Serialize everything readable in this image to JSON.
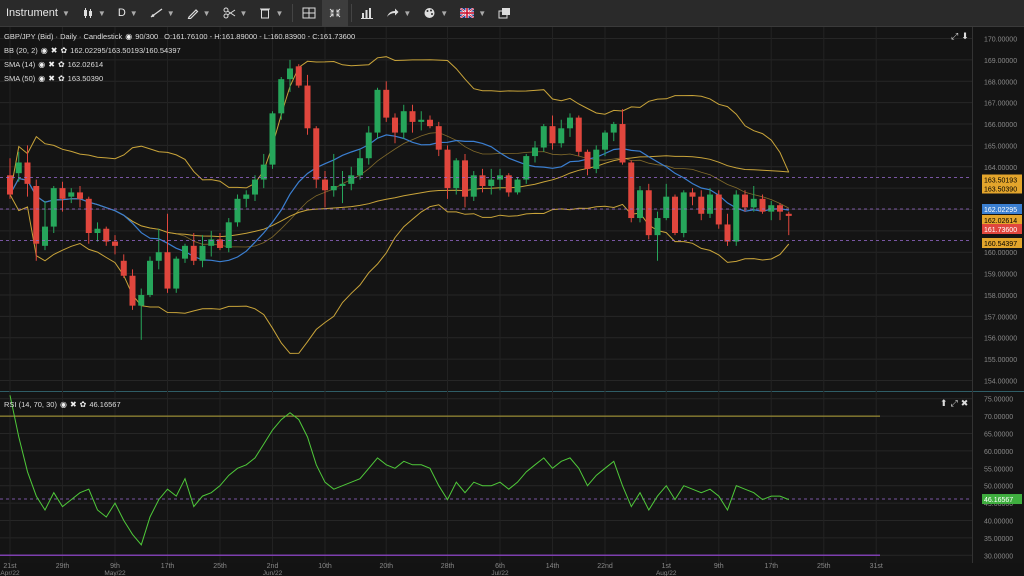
{
  "toolbar": {
    "instrument_label": "Instrument",
    "timeframe_label": "D"
  },
  "main_pane": {
    "title": "GBP/JPY (Bid) · Daily · Candlestick",
    "range": "90/300",
    "ohlc": "O:161.76100 - H:161.89000 - L:160.83900 - C:161.73600",
    "indicators": [
      {
        "name": "BB (20, 2)",
        "value": "162.02295/163.50193/160.54397"
      },
      {
        "name": "SMA (14)",
        "value": "162.02614"
      },
      {
        "name": "SMA (50)",
        "value": "163.50390"
      }
    ],
    "price_axis": [
      "170.00000",
      "169.00000",
      "168.00000",
      "167.00000",
      "166.00000",
      "165.00000",
      "164.00000",
      "163.00000",
      "162.00000",
      "161.00000",
      "160.00000",
      "159.00000",
      "158.00000",
      "157.00000",
      "156.00000",
      "155.00000",
      "154.00000"
    ],
    "price_tags": [
      {
        "label": "163.50193",
        "color": "#e3a52c",
        "text_color": "#000000"
      },
      {
        "label": "163.50390",
        "color": "#e3a52c",
        "text_color": "#000000"
      },
      {
        "label": "162.02295",
        "color": "#3b7fd1",
        "text_color": "#ffffff"
      },
      {
        "label": "162.02614",
        "color": "#e3a52c",
        "text_color": "#000000"
      },
      {
        "label": "161.73600",
        "color": "#e0463d",
        "text_color": "#ffffff"
      },
      {
        "label": "160.54397",
        "color": "#e3a52c",
        "text_color": "#000000"
      }
    ]
  },
  "rsi_pane": {
    "name": "RSI (14, 70, 30)",
    "value": "46.16567",
    "axis": [
      "75.00000",
      "70.00000",
      "65.00000",
      "60.00000",
      "55.00000",
      "50.00000",
      "45.00000",
      "40.00000",
      "35.00000",
      "30.00000"
    ],
    "tag": {
      "label": "46.16567",
      "color": "#3fae3f"
    }
  },
  "x_axis": [
    {
      "label": "21st",
      "sub": "Apr/22"
    },
    {
      "label": "29th",
      "sub": ""
    },
    {
      "label": "9th",
      "sub": "May/22"
    },
    {
      "label": "17th",
      "sub": ""
    },
    {
      "label": "25th",
      "sub": ""
    },
    {
      "label": "2nd",
      "sub": "Jun/22"
    },
    {
      "label": "10th",
      "sub": ""
    },
    {
      "label": "20th",
      "sub": ""
    },
    {
      "label": "28th",
      "sub": ""
    },
    {
      "label": "6th",
      "sub": "Jul/22"
    },
    {
      "label": "14th",
      "sub": ""
    },
    {
      "label": "22nd",
      "sub": ""
    },
    {
      "label": "1st",
      "sub": "Aug/22"
    },
    {
      "label": "9th",
      "sub": ""
    },
    {
      "label": "17th",
      "sub": ""
    },
    {
      "label": "25th",
      "sub": ""
    },
    {
      "label": "31st",
      "sub": ""
    }
  ],
  "colors": {
    "up": "#26a65b",
    "down": "#e0463d",
    "bb": "#c9a43a",
    "sma14": "#3b7fd1",
    "sma50": "#c9a43a",
    "rsi": "#4fc93a",
    "rsi_band": "#b5a43a",
    "rsi_low": "#7d3fae"
  },
  "chart_data": {
    "type": "candlestick",
    "series": [
      {
        "name": "GBP/JPY (Bid)",
        "values": [
          [
            163.6,
            164.4,
            162.5,
            162.7
          ],
          [
            163.7,
            164.7,
            163.3,
            164.2
          ],
          [
            164.2,
            165.0,
            162.6,
            163.2
          ],
          [
            163.1,
            163.4,
            159.6,
            160.4
          ],
          [
            160.3,
            162.4,
            160.1,
            161.2
          ],
          [
            161.2,
            163.1,
            160.9,
            163.0
          ],
          [
            163.0,
            163.3,
            161.9,
            162.5
          ],
          [
            162.6,
            163.0,
            162.3,
            162.8
          ],
          [
            162.8,
            163.1,
            162.1,
            162.5
          ],
          [
            162.5,
            162.6,
            160.4,
            160.9
          ],
          [
            160.9,
            161.4,
            160.5,
            161.1
          ],
          [
            161.1,
            161.2,
            160.3,
            160.5
          ],
          [
            160.5,
            160.8,
            159.9,
            160.3
          ],
          [
            159.6,
            159.9,
            158.8,
            158.9
          ],
          [
            158.9,
            159.2,
            157.3,
            157.5
          ],
          [
            157.5,
            158.3,
            155.9,
            158.0
          ],
          [
            158.0,
            159.8,
            157.9,
            159.6
          ],
          [
            159.6,
            161.1,
            159.2,
            160.0
          ],
          [
            160.0,
            161.8,
            158.1,
            158.3
          ],
          [
            158.3,
            159.8,
            158.1,
            159.7
          ],
          [
            159.7,
            160.4,
            159.5,
            160.3
          ],
          [
            160.3,
            160.9,
            159.4,
            159.6
          ],
          [
            159.6,
            160.8,
            159.3,
            160.3
          ],
          [
            160.3,
            161.0,
            159.8,
            160.6
          ],
          [
            160.6,
            160.9,
            160.1,
            160.2
          ],
          [
            160.2,
            161.6,
            160.0,
            161.4
          ],
          [
            161.4,
            162.7,
            161.2,
            162.5
          ],
          [
            162.5,
            162.9,
            162.1,
            162.7
          ],
          [
            162.7,
            163.6,
            162.4,
            163.4
          ],
          [
            163.4,
            164.6,
            163.0,
            164.1
          ],
          [
            164.1,
            166.6,
            163.9,
            166.5
          ],
          [
            166.5,
            168.2,
            166.2,
            168.1
          ],
          [
            168.1,
            169.0,
            167.5,
            168.6
          ],
          [
            168.7,
            168.8,
            167.7,
            167.8
          ],
          [
            167.8,
            168.3,
            165.5,
            165.8
          ],
          [
            165.8,
            165.9,
            163.0,
            163.4
          ],
          [
            163.4,
            163.8,
            162.1,
            162.9
          ],
          [
            162.9,
            164.6,
            162.6,
            163.1
          ],
          [
            163.1,
            163.8,
            162.3,
            163.2
          ],
          [
            163.2,
            164.0,
            162.9,
            163.6
          ],
          [
            163.6,
            164.8,
            163.4,
            164.4
          ],
          [
            164.4,
            165.9,
            164.1,
            165.6
          ],
          [
            165.6,
            167.7,
            165.3,
            167.6
          ],
          [
            167.6,
            168.0,
            166.1,
            166.3
          ],
          [
            166.3,
            166.5,
            165.1,
            165.6
          ],
          [
            165.6,
            166.9,
            165.3,
            166.6
          ],
          [
            166.6,
            166.9,
            165.6,
            166.1
          ],
          [
            166.1,
            166.6,
            165.7,
            166.2
          ],
          [
            166.2,
            166.4,
            165.8,
            165.9
          ],
          [
            165.9,
            166.1,
            164.5,
            164.8
          ],
          [
            164.8,
            165.0,
            162.5,
            163.0
          ],
          [
            163.0,
            164.4,
            162.7,
            164.3
          ],
          [
            164.3,
            164.6,
            162.1,
            162.6
          ],
          [
            162.6,
            163.8,
            162.4,
            163.6
          ],
          [
            163.6,
            163.9,
            162.8,
            163.1
          ],
          [
            163.1,
            163.9,
            162.7,
            163.4
          ],
          [
            163.4,
            163.9,
            162.9,
            163.6
          ],
          [
            163.6,
            163.7,
            162.6,
            162.8
          ],
          [
            162.8,
            163.5,
            162.7,
            163.4
          ],
          [
            163.4,
            164.6,
            163.2,
            164.5
          ],
          [
            164.5,
            165.2,
            164.2,
            164.9
          ],
          [
            164.9,
            166.0,
            164.7,
            165.9
          ],
          [
            165.9,
            166.4,
            164.8,
            165.1
          ],
          [
            165.1,
            166.2,
            164.9,
            165.8
          ],
          [
            165.8,
            166.5,
            165.4,
            166.3
          ],
          [
            166.3,
            166.4,
            164.5,
            164.7
          ],
          [
            164.7,
            164.8,
            163.6,
            163.9
          ],
          [
            163.9,
            165.0,
            163.7,
            164.8
          ],
          [
            164.8,
            165.7,
            164.5,
            165.6
          ],
          [
            165.6,
            166.1,
            165.2,
            166.0
          ],
          [
            166.0,
            166.7,
            164.1,
            164.2
          ],
          [
            164.2,
            164.3,
            161.4,
            161.6
          ],
          [
            161.6,
            163.1,
            161.4,
            162.9
          ],
          [
            162.9,
            163.2,
            160.6,
            160.8
          ],
          [
            160.8,
            161.9,
            159.6,
            161.6
          ],
          [
            161.6,
            163.2,
            161.5,
            162.6
          ],
          [
            162.6,
            162.7,
            160.8,
            160.9
          ],
          [
            160.9,
            162.9,
            160.7,
            162.8
          ],
          [
            162.8,
            163.0,
            162.2,
            162.6
          ],
          [
            162.6,
            162.9,
            161.5,
            161.8
          ],
          [
            161.8,
            163.0,
            161.6,
            162.7
          ],
          [
            162.7,
            162.9,
            161.1,
            161.3
          ],
          [
            161.3,
            161.8,
            160.3,
            160.5
          ],
          [
            160.5,
            162.9,
            160.3,
            162.7
          ],
          [
            162.7,
            162.9,
            161.9,
            162.1
          ],
          [
            162.1,
            163.1,
            161.9,
            162.5
          ],
          [
            162.5,
            162.7,
            161.8,
            161.9
          ],
          [
            161.9,
            162.4,
            161.5,
            162.2
          ],
          [
            162.2,
            162.3,
            161.5,
            161.9
          ],
          [
            161.8,
            161.9,
            160.8,
            161.7
          ]
        ]
      }
    ],
    "ylim": [
      153.6,
      170.4
    ],
    "rsi": {
      "values": [
        76,
        64,
        54,
        47,
        43,
        48,
        44,
        46,
        48,
        49,
        43,
        41,
        45,
        40,
        36,
        33,
        41,
        46,
        49,
        47,
        52,
        44,
        47,
        48,
        50,
        53,
        55,
        56,
        58,
        62,
        66,
        69,
        71,
        69,
        64,
        56,
        51,
        49,
        50,
        51,
        52,
        55,
        58,
        56,
        55,
        57,
        56,
        56,
        55,
        50,
        46,
        51,
        48,
        51,
        50,
        50,
        51,
        49,
        51,
        54,
        56,
        58,
        55,
        57,
        58,
        55,
        50,
        53,
        55,
        57,
        50,
        44,
        48,
        43,
        47,
        50,
        46,
        50,
        49,
        48,
        49,
        47,
        43,
        50,
        49,
        48,
        46,
        47,
        47,
        46
      ],
      "ylim": [
        29.5,
        75.5
      ],
      "upper": 70,
      "lower": 30,
      "mid": 46.16567
    }
  }
}
